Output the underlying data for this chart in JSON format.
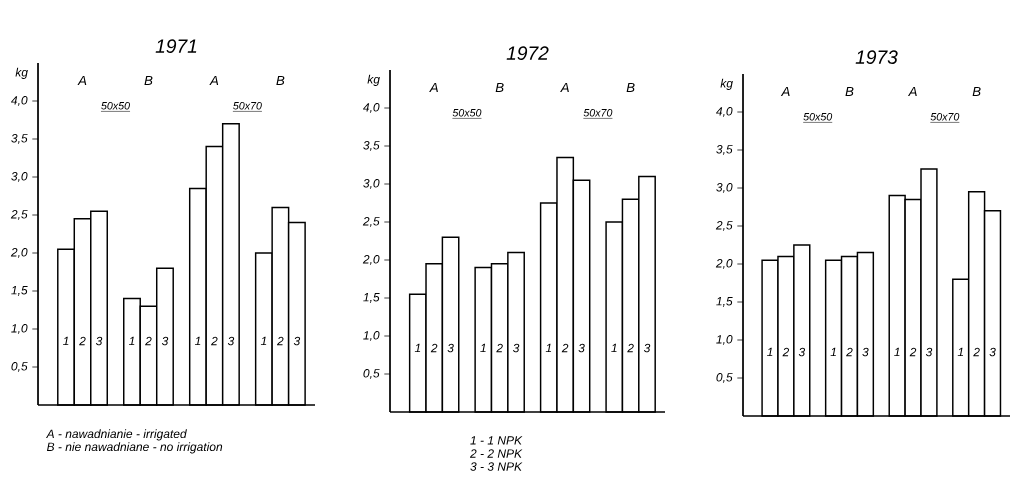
{
  "chart_data": [
    {
      "type": "bar",
      "title": "1971",
      "ylabel": "kg",
      "categories": [
        "1",
        "2",
        "3",
        "1",
        "2",
        "3",
        "1",
        "2",
        "3",
        "1",
        "2",
        "3"
      ],
      "series": [
        {
          "color": "#ffffff",
          "values": [
            2.05,
            2.45,
            2.55,
            1.4,
            1.3,
            1.8,
            2.85,
            3.4,
            3.7,
            2.0,
            2.6,
            2.4
          ]
        }
      ],
      "ylim": [
        0,
        4.5
      ],
      "yticks": [
        {
          "value": 0.5,
          "label": "0,5"
        },
        {
          "value": 1.0,
          "label": "1,0"
        },
        {
          "value": 1.5,
          "label": "1,5"
        },
        {
          "value": 2.0,
          "label": "2,0"
        },
        {
          "value": 2.5,
          "label": "2,5"
        },
        {
          "value": 3.0,
          "label": "3,0"
        },
        {
          "value": 3.5,
          "label": "3,5"
        },
        {
          "value": 4.0,
          "label": "4,0"
        }
      ],
      "annotations": [
        "A",
        "B",
        "A",
        "B",
        "50x50",
        "50x70",
        "A - nawadnianie - irrigated",
        "B - nie nawadniane - no irrigation"
      ]
    },
    {
      "type": "bar",
      "title": "1972",
      "ylabel": "kg",
      "categories": [
        "1",
        "2",
        "3",
        "1",
        "2",
        "3",
        "1",
        "2",
        "3",
        "1",
        "2",
        "3"
      ],
      "series": [
        {
          "color": "#ffffff",
          "values": [
            1.55,
            1.95,
            2.3,
            1.9,
            1.95,
            2.1,
            2.75,
            3.35,
            3.05,
            2.5,
            2.8,
            3.1
          ]
        }
      ],
      "ylim": [
        0,
        4.5
      ],
      "yticks": [
        {
          "value": 0.5,
          "label": "0,5"
        },
        {
          "value": 1.0,
          "label": "1,0"
        },
        {
          "value": 1.5,
          "label": "1,5"
        },
        {
          "value": 2.0,
          "label": "2,0"
        },
        {
          "value": 2.5,
          "label": "2,5"
        },
        {
          "value": 3.0,
          "label": "3,0"
        },
        {
          "value": 3.5,
          "label": "3,5"
        },
        {
          "value": 4.0,
          "label": "4,0"
        }
      ],
      "annotations": [
        "A",
        "B",
        "A",
        "B",
        "50x50",
        "50x70",
        "1 - 1 NPK",
        "2 - 2 NPK",
        "3 - 3 NPK"
      ]
    },
    {
      "type": "bar",
      "title": "1973",
      "ylabel": "kg",
      "categories": [
        "1",
        "2",
        "3",
        "1",
        "2",
        "3",
        "1",
        "2",
        "3",
        "1",
        "2",
        "3"
      ],
      "series": [
        {
          "color": "#ffffff",
          "values": [
            2.05,
            2.1,
            2.25,
            2.05,
            2.1,
            2.15,
            2.9,
            2.85,
            3.25,
            1.8,
            2.95,
            2.7
          ]
        }
      ],
      "ylim": [
        0,
        4.5
      ],
      "yticks": [
        {
          "value": 0.5,
          "label": "0,5"
        },
        {
          "value": 1.0,
          "label": "1,0"
        },
        {
          "value": 1.5,
          "label": "1,5"
        },
        {
          "value": 2.0,
          "label": "2,0"
        },
        {
          "value": 2.5,
          "label": "2,5"
        },
        {
          "value": 3.0,
          "label": "3,0"
        },
        {
          "value": 3.5,
          "label": "3,5"
        },
        {
          "value": 4.0,
          "label": "4,0"
        }
      ],
      "annotations": [
        "A",
        "B",
        "A",
        "B",
        "50x50",
        "50x70"
      ]
    }
  ]
}
